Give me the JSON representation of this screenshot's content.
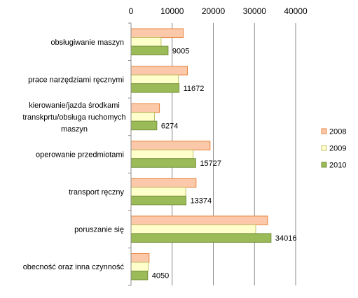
{
  "chart_data": {
    "type": "bar",
    "orientation": "horizontal",
    "categories": [
      "obsługiwanie maszyn",
      "prace narzędziami ręcznymi",
      "kierowanie/jazda środkami transkprtu/obsługa ruchomych maszyn",
      "operowanie przedmiotami",
      "transport ręczny",
      "poruszanie się",
      "obecność oraz inna czynność"
    ],
    "category_lines": [
      [
        "obsługiwanie maszyn"
      ],
      [
        "prace narzędziami ręcznymi"
      ],
      [
        "kierowanie/jazda środkami",
        "transkprtu/obsługa ruchomych",
        "maszyn"
      ],
      [
        "operowanie przedmiotami"
      ],
      [
        "transport ręczny"
      ],
      [
        "poruszanie się"
      ],
      [
        "obecność oraz inna czynność"
      ]
    ],
    "series": [
      {
        "name": "2008",
        "color": "#FBC9A9",
        "stroke": "#E8843C",
        "values": [
          12700,
          13700,
          6900,
          19200,
          15800,
          33200,
          4400
        ]
      },
      {
        "name": "2009",
        "color": "#FFFFCC",
        "stroke": "#BFBF6A",
        "values": [
          7300,
          11500,
          5700,
          15100,
          13300,
          30300,
          4200
        ]
      },
      {
        "name": "2010",
        "color": "#9BBB59",
        "stroke": "#77933C",
        "values": [
          9005,
          11672,
          6274,
          15727,
          13374,
          34016,
          4050
        ]
      }
    ],
    "data_labels": [
      "9005",
      "11672",
      "6274",
      "15727",
      "13374",
      "34016",
      "4050"
    ],
    "x_ticks": [
      "0",
      "10000",
      "20000",
      "30000",
      "40000"
    ],
    "xlim": [
      0,
      40000
    ],
    "x_axis_position": "top",
    "grid": true,
    "legend_position": "right"
  }
}
